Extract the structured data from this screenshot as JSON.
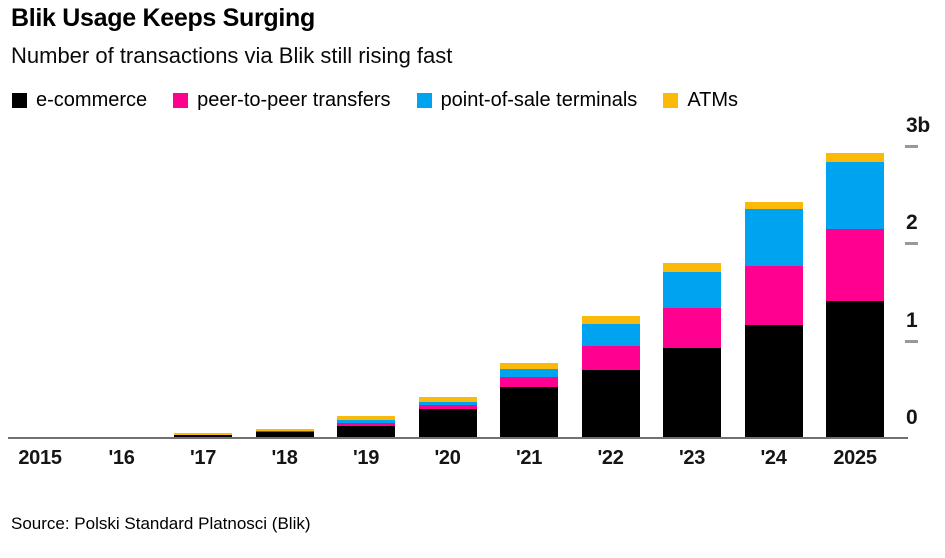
{
  "header": {
    "title": "Blik Usage Keeps Surging",
    "subtitle": "Number of transactions via Blik still rising fast"
  },
  "footer": {
    "source": "Source: Polski Standard Platnosci (Blik)"
  },
  "colors": {
    "e_commerce": "#000000",
    "peer_to_peer": "#ff0090",
    "point_of_sale": "#00a3f0",
    "atms": "#fbb90a",
    "axis_line": "#707175",
    "tick": "#98999c",
    "text": "#000000"
  },
  "chart_data": {
    "type": "bar",
    "stacked": true,
    "title": "Blik Usage Keeps Surging",
    "subtitle": "Number of transactions via Blik still rising fast",
    "unit": "billions of transactions per year",
    "legend_position": "top",
    "grid": false,
    "categories": [
      "2015",
      "'16",
      "'17",
      "'18",
      "'19",
      "'20",
      "'21",
      "'22",
      "'23",
      "'24",
      "2025"
    ],
    "series": [
      {
        "name": "e-commerce",
        "color": "#000000",
        "values": [
          0.002,
          0.005,
          0.032,
          0.066,
          0.119,
          0.3,
          0.52,
          0.7,
          0.92,
          1.16,
          1.41
        ]
      },
      {
        "name": "peer-to-peer transfers",
        "color": "#ff0090",
        "values": [
          0.0,
          0.001,
          0.001,
          0.003,
          0.035,
          0.036,
          0.105,
          0.24,
          0.41,
          0.605,
          0.735
        ]
      },
      {
        "name": "point-of-sale terminals",
        "color": "#00a3f0",
        "values": [
          0.0,
          0.001,
          0.001,
          0.003,
          0.027,
          0.032,
          0.079,
          0.233,
          0.375,
          0.582,
          0.69
        ]
      },
      {
        "name": "ATMs",
        "color": "#fbb90a",
        "values": [
          0.0,
          0.004,
          0.016,
          0.02,
          0.041,
          0.055,
          0.068,
          0.075,
          0.086,
          0.078,
          0.092
        ]
      }
    ],
    "totals": [
      0.002,
      0.011,
      0.05,
      0.092,
      0.222,
      0.423,
      0.772,
      1.248,
      1.791,
      2.425,
      2.927
    ],
    "y_axis": {
      "ticks": [
        0,
        1,
        2,
        3
      ],
      "tick_labels": [
        "0",
        "1",
        "2",
        "3b"
      ],
      "ylim": [
        0,
        3.28
      ],
      "side": "right"
    }
  }
}
